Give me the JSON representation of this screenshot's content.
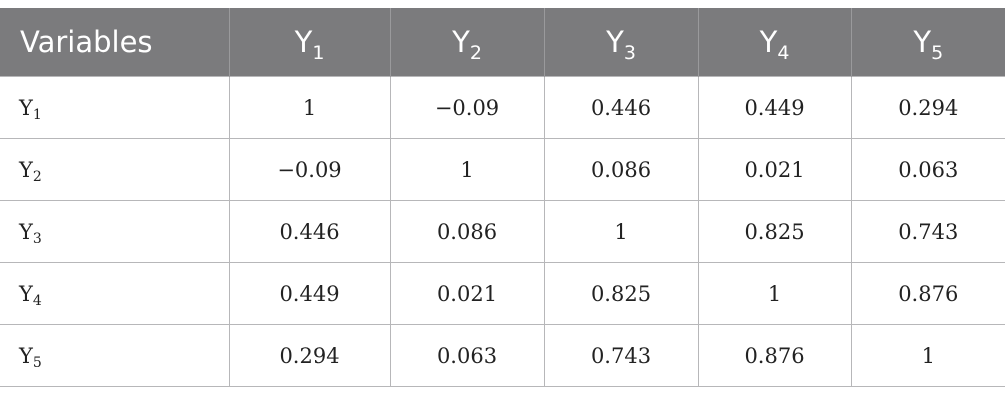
{
  "table": {
    "header": {
      "label": "Variables",
      "columns": [
        {
          "base": "Y",
          "sub": "1"
        },
        {
          "base": "Y",
          "sub": "2"
        },
        {
          "base": "Y",
          "sub": "3"
        },
        {
          "base": "Y",
          "sub": "4"
        },
        {
          "base": "Y",
          "sub": "5"
        }
      ]
    },
    "rows": [
      {
        "base": "Y",
        "sub": "1",
        "cells": [
          "1",
          "−0.09",
          "0.446",
          "0.449",
          "0.294"
        ]
      },
      {
        "base": "Y",
        "sub": "2",
        "cells": [
          "−0.09",
          "1",
          "0.086",
          "0.021",
          "0.063"
        ]
      },
      {
        "base": "Y",
        "sub": "3",
        "cells": [
          "0.446",
          "0.086",
          "1",
          "0.825",
          "0.743"
        ]
      },
      {
        "base": "Y",
        "sub": "4",
        "cells": [
          "0.449",
          "0.021",
          "0.825",
          "1",
          "0.876"
        ]
      },
      {
        "base": "Y",
        "sub": "5",
        "cells": [
          "0.294",
          "0.063",
          "0.743",
          "0.876",
          "1"
        ]
      }
    ]
  }
}
